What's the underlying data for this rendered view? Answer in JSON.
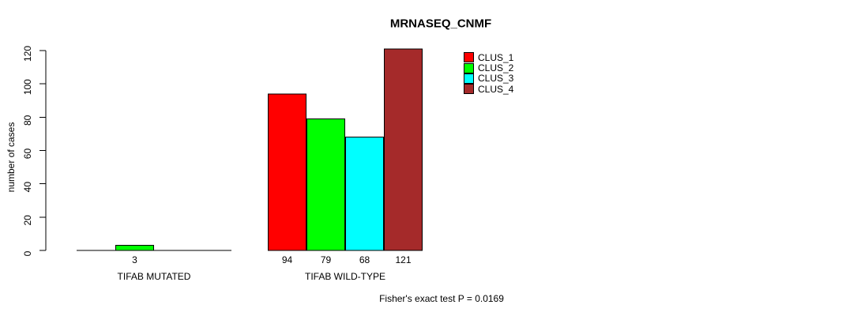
{
  "figure": {
    "background": "#ffffff",
    "text_color": "#000000",
    "axis_color": "#000000"
  },
  "chart_data": {
    "type": "bar",
    "title": "MRNASEQ_CNMF",
    "xlabel": "",
    "ylabel": "number of cases",
    "footer": "Fisher's exact test P = 0.0169",
    "categories": [
      "TIFAB MUTATED",
      "TIFAB WILD-TYPE"
    ],
    "series": [
      {
        "name": "CLUS_1",
        "color": "#FF0000",
        "values": [
          0,
          94
        ]
      },
      {
        "name": "CLUS_2",
        "color": "#00FF00",
        "values": [
          3,
          79
        ]
      },
      {
        "name": "CLUS_3",
        "color": "#00FFFF",
        "values": [
          0,
          68
        ]
      },
      {
        "name": "CLUS_4",
        "color": "#A52A2A",
        "values": [
          0,
          121
        ]
      }
    ],
    "bar_value_labels_visible": [
      3,
      94,
      79,
      68,
      121
    ],
    "yticks": [
      0,
      20,
      40,
      60,
      80,
      100,
      120
    ],
    "ylim": [
      0,
      121
    ],
    "grid": false,
    "legend_position": "inside-top, right of wild-type bars",
    "bar_border_color": "#000000"
  }
}
